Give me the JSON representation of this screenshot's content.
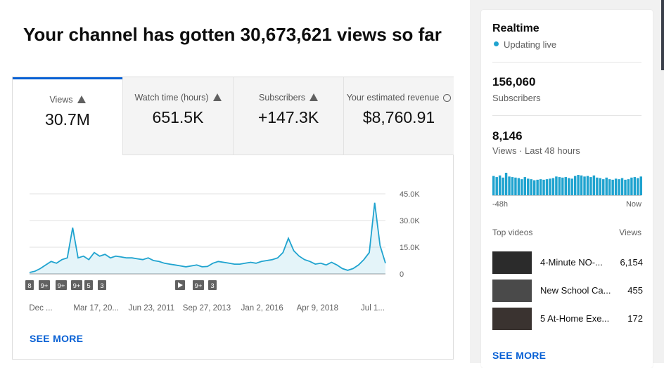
{
  "header": {
    "title": "Your channel has gotten 30,673,621 views so far"
  },
  "tabs": [
    {
      "label": "Views",
      "value": "30.7M"
    },
    {
      "label": "Watch time (hours)",
      "value": "651.5K"
    },
    {
      "label": "Subscribers",
      "value": "+147.3K"
    },
    {
      "label": "Your estimated revenue",
      "value": "$8,760.91"
    }
  ],
  "chart_data": {
    "type": "line",
    "color": "#1fa3cf",
    "xticks": [
      "Dec ...",
      "Mar 17, 20...",
      "Jun 23, 2011",
      "Sep 27, 2013",
      "Jan 2, 2016",
      "Apr 9, 2018",
      "Jul 1..."
    ],
    "values": [
      800,
      1500,
      3000,
      5000,
      7000,
      6000,
      8000,
      9000,
      26000,
      9000,
      10000,
      8000,
      12000,
      10000,
      11000,
      9000,
      10000,
      9500,
      9000,
      9000,
      8500,
      8000,
      9000,
      7500,
      7000,
      6000,
      5500,
      5000,
      4500,
      4000,
      4500,
      5000,
      4000,
      4200,
      6000,
      7000,
      6500,
      6000,
      5500,
      5500,
      6000,
      6500,
      6000,
      7000,
      7500,
      8000,
      9000,
      12000,
      20000,
      13000,
      10000,
      8000,
      7000,
      5500,
      6000,
      5000,
      6500,
      5000,
      3000,
      2000,
      3000,
      5000,
      8000,
      12000,
      40000,
      16000,
      6000
    ],
    "ylim": [
      0,
      45000
    ],
    "yticks": [
      0,
      {
        "value": 15000,
        "label": "15.0K"
      },
      {
        "value": 30000,
        "label": "30.0K"
      },
      {
        "value": 45000,
        "label": "45.0K"
      }
    ],
    "grid": true,
    "annotations": [
      "8",
      "9+",
      "9+",
      "9+",
      "5",
      "3",
      "9+",
      "3"
    ]
  },
  "see_more": "SEE MORE",
  "realtime": {
    "title": "Realtime",
    "status": "Updating live",
    "subscribers": {
      "value": "156,060",
      "label": "Subscribers"
    },
    "views": {
      "value": "8,146",
      "label": "Views · Last 48 hours"
    },
    "chart_data": {
      "type": "bar",
      "color": "#1fa3cf",
      "values": [
        180,
        170,
        185,
        165,
        210,
        175,
        170,
        165,
        160,
        150,
        170,
        155,
        150,
        140,
        145,
        150,
        145,
        150,
        155,
        160,
        175,
        170,
        165,
        170,
        160,
        155,
        180,
        190,
        185,
        175,
        180,
        170,
        185,
        165,
        160,
        150,
        165,
        150,
        145,
        155,
        150,
        160,
        145,
        150,
        165,
        170,
        160,
        175
      ]
    },
    "start_label": "-48h",
    "end_label": "Now",
    "top_videos": {
      "label": "Top videos",
      "views_label": "Views",
      "items": [
        {
          "title": "4-Minute NO-...",
          "views": "6,154"
        },
        {
          "title": "New School Ca...",
          "views": "455"
        },
        {
          "title": "5 At-Home Exe...",
          "views": "172"
        }
      ]
    },
    "see_more": "SEE MORE"
  }
}
